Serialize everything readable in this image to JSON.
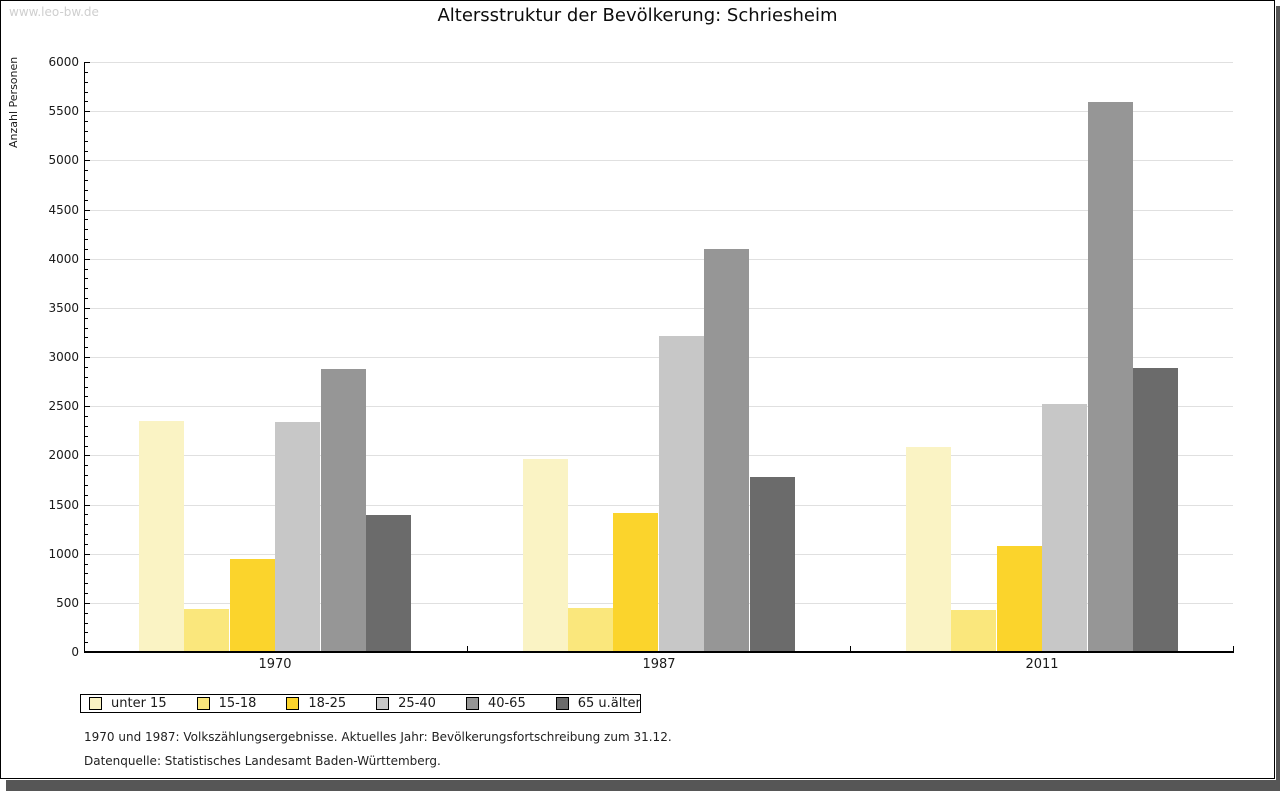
{
  "page": {
    "watermark": "www.leo-bw.de",
    "title": "Altersstruktur der Bevölkerung: Schriesheim",
    "footnote1": "1970 und 1987: Volkszählungsergebnisse. Aktuelles Jahr: Bevölkerungsfortschreibung zum 31.12.",
    "footnote2": "Datenquelle: Statistisches Landesamt Baden-Württemberg."
  },
  "chart_data": {
    "type": "bar",
    "title": "Altersstruktur der Bevölkerung: Schriesheim",
    "ylabel": "Anzahl Personen",
    "xlabel": "",
    "categories": [
      "1970",
      "1987",
      "2011"
    ],
    "series": [
      {
        "name": "unter 15",
        "color": "#FAF3C4",
        "values": [
          2350,
          1960,
          2090
        ]
      },
      {
        "name": "15-18",
        "color": "#FAE77C",
        "values": [
          440,
          450,
          430
        ]
      },
      {
        "name": "18-25",
        "color": "#FBD42C",
        "values": [
          950,
          1410,
          1080
        ]
      },
      {
        "name": "25-40",
        "color": "#C7C7C7",
        "values": [
          2340,
          3210,
          2520
        ]
      },
      {
        "name": "40-65",
        "color": "#969696",
        "values": [
          2880,
          4100,
          5590
        ]
      },
      {
        "name": "65 u.älter",
        "color": "#6B6B6B",
        "values": [
          1390,
          1780,
          2890
        ]
      }
    ],
    "ylim": [
      0,
      6000
    ],
    "y_tick_step": 500,
    "y_minor_tick_step": 100,
    "y_ticks": [
      "0",
      "500",
      "1000",
      "1500",
      "2000",
      "2500",
      "3000",
      "3500",
      "4000",
      "4500",
      "5000",
      "5500",
      "6000"
    ],
    "grid": true,
    "legend_position": "bottom-left",
    "grid_color": "#e0e0e0"
  }
}
